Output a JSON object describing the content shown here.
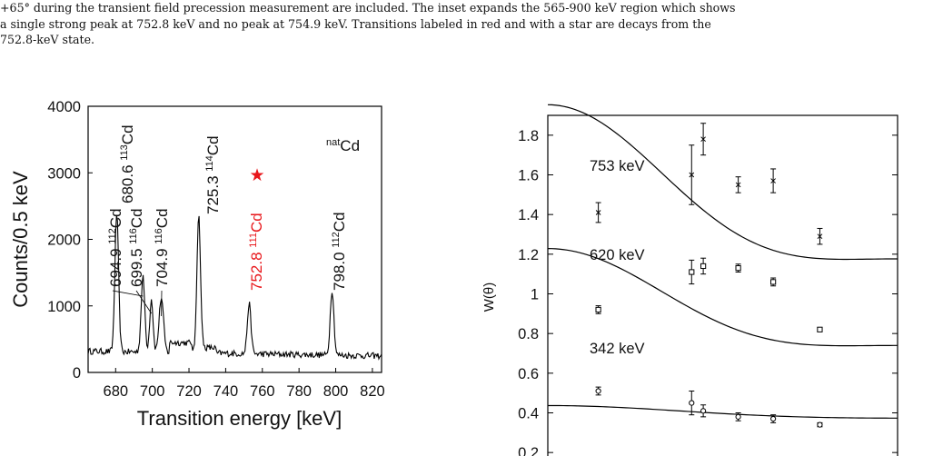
{
  "caption": {
    "lines": [
      "+65° during the transient field precession measurement are included. The inset expands the 565-900 keV region which shows",
      "a single strong peak at 752.8 keV and no peak at 754.9 keV. Transitions labeled in red and with a star are decays from the",
      "752.8-keV state."
    ]
  },
  "chart_data": [
    {
      "type": "line",
      "xlabel": "Transition energy [keV]",
      "ylabel": "Counts/0.5 keV",
      "xlim": [
        665,
        825
      ],
      "ylim": [
        0,
        4000
      ],
      "x_ticks": [
        680,
        700,
        720,
        740,
        760,
        780,
        800,
        820
      ],
      "x_tick_labels": [
        "680",
        "700",
        "720",
        "740",
        "760",
        "780",
        "800",
        "820"
      ],
      "y_ticks": [
        0,
        1000,
        2000,
        3000,
        4000
      ],
      "y_tick_labels": [
        "0",
        "1000",
        "2000",
        "3000",
        "4000"
      ],
      "corner_label": {
        "sup": "nat",
        "base": "Cd"
      },
      "baseline_counts": 320,
      "peaks": [
        {
          "energy": 680.6,
          "height": 2080,
          "width": 1.0
        },
        {
          "energy": 694.9,
          "height": 1120,
          "width": 1.0
        },
        {
          "energy": 699.5,
          "height": 800,
          "width": 0.9
        },
        {
          "energy": 704.9,
          "height": 820,
          "width": 1.2
        },
        {
          "energy": 725.3,
          "height": 2070,
          "width": 1.0
        },
        {
          "energy": 752.8,
          "height": 750,
          "width": 1.0
        },
        {
          "energy": 798.0,
          "height": 980,
          "width": 1.0
        }
      ],
      "peak_labels": [
        {
          "energy": "680.6",
          "sup": "113",
          "base": "Cd",
          "red": false
        },
        {
          "energy": "694.9",
          "sup": "112",
          "base": "Cd",
          "red": false
        },
        {
          "energy": "699.5",
          "sup": "116",
          "base": "Cd",
          "red": false
        },
        {
          "energy": "704.9",
          "sup": "116",
          "base": "Cd",
          "red": false
        },
        {
          "energy": "725.3",
          "sup": "114",
          "base": "Cd",
          "red": false
        },
        {
          "energy": "752.8",
          "sup": "111",
          "base": "Cd",
          "red": true
        },
        {
          "energy": "798.0",
          "sup": "112",
          "base": "Cd",
          "red": false
        }
      ],
      "star": "★",
      "highlight_color": "#e8171b"
    },
    {
      "type": "scatter",
      "xlabel": "",
      "ylabel": "W(θ)",
      "xlim": [
        0,
        90
      ],
      "ylim": [
        0.1,
        1.9
      ],
      "y_ticks": [
        0.2,
        0.4,
        0.6,
        0.8,
        1.0,
        1.2,
        1.4,
        1.6,
        1.8
      ],
      "y_tick_labels": [
        "0.2",
        "0.4",
        "0.6",
        "0.8",
        "1",
        "1.2",
        "1.4",
        "1.6",
        "1.8"
      ],
      "series": [
        {
          "name": "753 keV",
          "marker": "cross",
          "points": [
            {
              "x": 13.0,
              "y": 1.41,
              "err": 0.05
            },
            {
              "x": 37.0,
              "y": 1.6,
              "err": 0.15
            },
            {
              "x": 40.0,
              "y": 1.78,
              "err": 0.08
            },
            {
              "x": 49.0,
              "y": 1.55,
              "err": 0.04
            },
            {
              "x": 58.0,
              "y": 1.57,
              "err": 0.06
            },
            {
              "x": 70.0,
              "y": 1.29,
              "err": 0.04
            }
          ],
          "fit": {
            "a0": 1.32,
            "a2": 0.33,
            "a4": 0.15
          }
        },
        {
          "name": "620 keV",
          "marker": "square",
          "points": [
            {
              "x": 13.0,
              "y": 0.92,
              "err": 0.02
            },
            {
              "x": 37.0,
              "y": 1.11,
              "err": 0.06
            },
            {
              "x": 40.0,
              "y": 1.14,
              "err": 0.04
            },
            {
              "x": 49.0,
              "y": 1.13,
              "err": 0.02
            },
            {
              "x": 58.0,
              "y": 1.06,
              "err": 0.02
            },
            {
              "x": 70.0,
              "y": 0.82,
              "err": 0.01
            }
          ],
          "fit": {
            "a0": 0.83,
            "a2": 0.33,
            "a4": 0.15
          }
        },
        {
          "name": "342 keV",
          "marker": "circle",
          "points": [
            {
              "x": 13.0,
              "y": 0.51,
              "err": 0.02
            },
            {
              "x": 37.0,
              "y": 0.45,
              "err": 0.06
            },
            {
              "x": 40.0,
              "y": 0.41,
              "err": 0.03
            },
            {
              "x": 49.0,
              "y": 0.38,
              "err": 0.02
            },
            {
              "x": 58.0,
              "y": 0.37,
              "err": 0.02
            },
            {
              "x": 70.0,
              "y": 0.34,
              "err": 0.01
            }
          ],
          "fit": {
            "a0": 0.39,
            "a2": 0.1,
            "a4": 0.02
          }
        }
      ]
    }
  ]
}
